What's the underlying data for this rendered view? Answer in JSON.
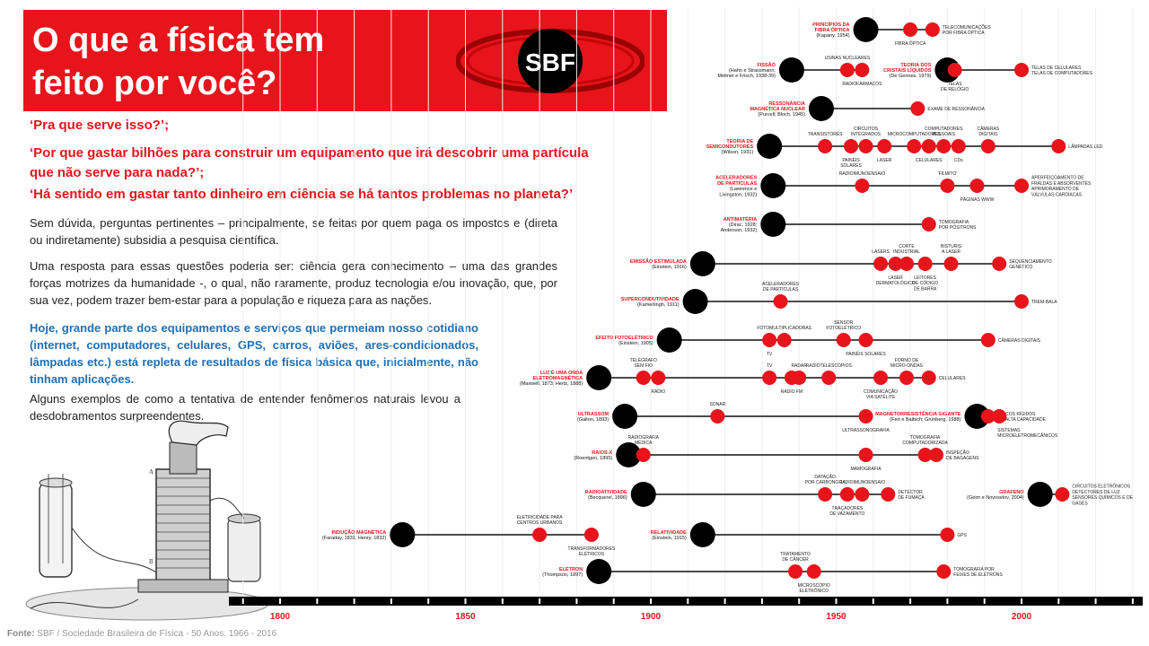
{
  "title": {
    "line1": "O que a física tem",
    "line2": "feito por você?",
    "logo_text": "SBF"
  },
  "questions": [
    "‘Pra que serve isso?’;",
    "‘Por que gastar bilhões para construir um equipamento que irá descobrir uma partícula",
    "que não serve para nada?’;",
    "‘Há sentido em gastar tanto dinheiro em ciência se há tantos problemas no planeta?’"
  ],
  "paragraphs": {
    "p1": "Sem dúvida,  perguntas  pertinentes – principalmente,  se feitas por quem paga os impostos  e (direta ou indiretamente)  subsidia  a pesquisa  científica.",
    "p2": "Uma resposta  para essas questões poderia ser: ciência gera conhecimento – uma das grandes  forças motrizes da humanidade  -, o qual,  não raramente,  produz tecnologia e/ou inovação, que, por sua vez, podem trazer bem-estar  para a população  e riqueza para as nações.",
    "p3": "Hoje,  grande parte dos equipamentos e serviços que permeiam nosso cotidiano (internet, computadores,  celulares,  GPS,  carros,  aviões,  ares-condicionados, lâmpadas etc.) está repleta de resultados de física  básica que, inicialmente,  não tinham aplicações.",
    "p4": "Alguns  exemplos  de como a tentativa  de entender fenômenos naturais  levou a desdobramentos  surpreendentes."
  },
  "footer": {
    "label": "Fonte:",
    "text": " SBF / Sociedade Brasileira de Física - 50 Anos. 1966 - 2016"
  },
  "colors": {
    "accent": "#e8141b",
    "blue": "#1f6fb4",
    "dot_black": "#000000"
  },
  "timeline": {
    "year_labels": [
      "1800",
      "1850",
      "1900",
      "1950",
      "2000"
    ],
    "year_values": [
      1800,
      1850,
      1900,
      1950,
      2000
    ],
    "events": [
      {
        "name": "PRINCÍPIOS DA FIBRA ÓPTICA",
        "lines": [
          "PRINCÍPIOS DA",
          "FIBRA ÓPTICA"
        ],
        "ref": "(Kapany, 1954)",
        "year": 1958,
        "row": 0,
        "apps": [
          {
            "year": 1970,
            "label": [
              "FIBRA ÓPTICA"
            ],
            "pos": "below"
          },
          {
            "year": 1976,
            "label": [
              "TELECOMUNICAÇÕES",
              "POR FIBRA ÓPTICA"
            ],
            "pos": "right"
          }
        ]
      },
      {
        "name": "FISSÃO",
        "lines": [
          "FISSÃO"
        ],
        "ref": "(Hahn e Strassmann; Meitner e Frisch, 1938-39)",
        "refLines": [
          "(Hahn e Strassmann;",
          "Meitner e Frisch, 1938-39)"
        ],
        "year": 1938,
        "row": 1,
        "apps": [
          {
            "year": 1953,
            "label": [
              "USINAS NUCLEARES"
            ],
            "pos": "above"
          },
          {
            "year": 1957,
            "label": [
              "RADIOFÁRMACOS"
            ],
            "pos": "below"
          }
        ]
      },
      {
        "name": "TEORIA DOS CRISTAIS LÍQUIDOS",
        "lines": [
          "TEORIA DOS",
          "CRISTAIS LÍQUIDOS"
        ],
        "ref": "(De Gennes, 1979)",
        "year": 1980,
        "row": 1,
        "apps": [
          {
            "year": 1982,
            "label": [
              "TELAS",
              "DE RELÓGIO"
            ],
            "pos": "below"
          },
          {
            "year": 2000,
            "label": [
              "TELAS DE CELULARES",
              "TELAS DE COMPUTADORES"
            ],
            "pos": "right"
          }
        ]
      },
      {
        "name": "RESSONÂNCIA MAGNÉTICA NUCLEAR",
        "lines": [
          "RESSONÂNCIA",
          "MAGNÉTICA NUCLEAR"
        ],
        "ref": "(Purcell; Bloch, 1945)",
        "year": 1946,
        "row": 2,
        "apps": [
          {
            "year": 1972,
            "label": [
              "EXAME DE RESSONÂNCIA"
            ],
            "pos": "right"
          }
        ]
      },
      {
        "name": "TEORIA DE SEMICONDUTORES",
        "lines": [
          "TEORIA DE",
          "SEMICONDUTORES"
        ],
        "ref": "(Wilson, 1931)",
        "year": 1932,
        "row": 3,
        "apps": [
          {
            "year": 1947,
            "label": [
              "TRANSISTORES"
            ],
            "pos": "above"
          },
          {
            "year": 1954,
            "label": [
              "PAINÉIS",
              "SOLARES"
            ],
            "pos": "below"
          },
          {
            "year": 1958,
            "label": [
              "CIRCUITOS",
              "INTEGRADOS"
            ],
            "pos": "above"
          },
          {
            "year": 1963,
            "label": [
              "LASER"
            ],
            "pos": "below"
          },
          {
            "year": 1971,
            "label": [
              "MICROCOMPUTADORES"
            ],
            "pos": "above"
          },
          {
            "year": 1975,
            "label": [
              "CELULARES"
            ],
            "pos": "below"
          },
          {
            "year": 1979,
            "label": [
              "COMPUTADORES",
              "PESSOAIS"
            ],
            "pos": "above"
          },
          {
            "year": 1983,
            "label": [
              "CDs"
            ],
            "pos": "below"
          },
          {
            "year": 1991,
            "label": [
              "CÂMERAS",
              "DIGITAIS"
            ],
            "pos": "above"
          },
          {
            "year": 2010,
            "label": [
              "LÂMPADAS LED"
            ],
            "pos": "right"
          }
        ]
      },
      {
        "name": "ACELERADORES DE PARTÍCULAS",
        "lines": [
          "ACELERADORES",
          "DE PARTÍCULAS"
        ],
        "ref": "(Lawrence e Livingston, 1932)",
        "refLines": [
          "(Lawrence e",
          "Livingston, 1932)"
        ],
        "year": 1933,
        "row": 4,
        "apps": [
          {
            "year": 1957,
            "label": [
              "RADIOIMUNOENSAIO"
            ],
            "pos": "above"
          },
          {
            "year": 1980,
            "label": [
              "'FILMITO'"
            ],
            "pos": "above"
          },
          {
            "year": 1988,
            "label": [
              "PÁGINAS WWW"
            ],
            "pos": "below"
          },
          {
            "year": 2000,
            "label": [
              "APERFEIÇOAMENTO DE",
              "FRALDAS E ABSORVENTES",
              "APRIMORAMENTO DE",
              "VÁLVULAS CARDÍACAS"
            ],
            "pos": "right"
          }
        ]
      },
      {
        "name": "ANTIMATÉRIA",
        "lines": [
          "ANTIMATÉRIA"
        ],
        "ref": "(Dirac, 1928; Anderson, 1932)",
        "refLines": [
          "(Dirac, 1928;",
          "Anderson, 1932)"
        ],
        "year": 1933,
        "row": 5,
        "apps": [
          {
            "year": 1975,
            "label": [
              "TOMOGRAFIA",
              "POR PÓSITRONS"
            ],
            "pos": "right"
          }
        ]
      },
      {
        "name": "EMISSÃO ESTIMULADA",
        "lines": [
          "EMISSÃO ESTIMULADA"
        ],
        "ref": "(Einstein, 1916)",
        "year": 1914,
        "row": 6,
        "apps": [
          {
            "year": 1962,
            "label": [
              "LASERS"
            ],
            "pos": "above"
          },
          {
            "year": 1966,
            "label": [
              "LASER",
              "DERMATOLÓGICO"
            ],
            "pos": "below"
          },
          {
            "year": 1969,
            "label": [
              "CORTE",
              "INDUSTRIAL"
            ],
            "pos": "above"
          },
          {
            "year": 1974,
            "label": [
              "LEITORES",
              "DE CÓDIGO",
              "DE BARRA"
            ],
            "pos": "below"
          },
          {
            "year": 1981,
            "label": [
              "BISTURIS",
              "A LASER"
            ],
            "pos": "above"
          },
          {
            "year": 1994,
            "label": [
              "SEQUENCIAMENTO",
              "GENÉTICO"
            ],
            "pos": "right"
          }
        ]
      },
      {
        "name": "SUPERCONDUTIVIDADE",
        "lines": [
          "SUPERCONDUTIVIDADE"
        ],
        "ref": "(Kamerlingh, 1911)",
        "year": 1912,
        "row": 7,
        "apps": [
          {
            "year": 1935,
            "label": [
              "ACELERADORES",
              "DE PARTÍCULAS"
            ],
            "pos": "above"
          },
          {
            "year": 2000,
            "label": [
              "TREM-BALA"
            ],
            "pos": "right"
          }
        ]
      },
      {
        "name": "EFEITO FOTOELÉTRICO",
        "lines": [
          "EFEITO FOTOELÉTRICO"
        ],
        "ref": "(Einstein, 1905)",
        "year": 1905,
        "row": 8,
        "apps": [
          {
            "year": 1932,
            "label": [
              "TV"
            ],
            "pos": "below"
          },
          {
            "year": 1936,
            "label": [
              "FOTOMULTIPLICADORAS"
            ],
            "pos": "above"
          },
          {
            "year": 1952,
            "label": [
              "SENSOR",
              "FOTOELÉTRICO"
            ],
            "pos": "above"
          },
          {
            "year": 1958,
            "label": [
              "PAINÉIS SOLARES"
            ],
            "pos": "below"
          },
          {
            "year": 1991,
            "label": [
              "CÂMERAS DIGITAIS"
            ],
            "pos": "right"
          }
        ]
      },
      {
        "name": "LUZ É UMA ONDA ELETROMAGNÉTICA",
        "lines": [
          "LUZ É UMA ONDA",
          "ELETROMAGNÉTICA"
        ],
        "ref": "(Maxwell, 1873; Hertz, 1888)",
        "year": 1886,
        "row": 9,
        "apps": [
          {
            "year": 1898,
            "label": [
              "TELÉGRAFO",
              "SEM FIO"
            ],
            "pos": "above"
          },
          {
            "year": 1902,
            "label": [
              "RÁDIO"
            ],
            "pos": "below"
          },
          {
            "year": 1932,
            "label": [
              "TV"
            ],
            "pos": "above"
          },
          {
            "year": 1938,
            "label": [
              "RÁDIO FM"
            ],
            "pos": "below"
          },
          {
            "year": 1940,
            "label": [
              "RADAR"
            ],
            "pos": "above"
          },
          {
            "year": 1948,
            "label": [
              "RADIOTELESCÓPIOS"
            ],
            "pos": "above"
          },
          {
            "year": 1962,
            "label": [
              "COMUNICAÇÃO",
              "VIA SATÉLITE"
            ],
            "pos": "below"
          },
          {
            "year": 1969,
            "label": [
              "FORNO DE",
              "MICRO-ONDAS"
            ],
            "pos": "above"
          },
          {
            "year": 1975,
            "label": [
              "CELULARES"
            ],
            "pos": "right"
          }
        ]
      },
      {
        "name": "ULTRASSOM",
        "lines": [
          "ULTRASSOM"
        ],
        "ref": "(Galton, 1893)",
        "year": 1893,
        "row": 10,
        "apps": [
          {
            "year": 1918,
            "label": [
              "SONAR"
            ],
            "pos": "above"
          },
          {
            "year": 1958,
            "label": [
              "ULTRASSONOGRAFIA"
            ],
            "pos": "below"
          }
        ]
      },
      {
        "name": "MAGNETORRESISTÊNCIA GIGANTE",
        "lines": [
          "MAGNETORRESISTÊNCIA GIGANTE"
        ],
        "ref": "(Fert e Baibich; Grünberg, 1988)",
        "year": 1988,
        "row": 10,
        "apps": [
          {
            "year": 1991,
            "label": [
              "DISCOS RÍGIDOS",
              "DE ALTA CAPACIDADE"
            ],
            "pos": "right"
          },
          {
            "year": 1994,
            "label": [
              "SISTEMAS",
              "MICROELETROMECÂNICOS"
            ],
            "pos": "belowright"
          }
        ]
      },
      {
        "name": "RAIOS-X",
        "lines": [
          "RAIOS-X"
        ],
        "ref": "(Roentgen, 1895)",
        "year": 1894,
        "row": 11,
        "apps": [
          {
            "year": 1898,
            "label": [
              "RADIOGRAFIA",
              "MÉDICA"
            ],
            "pos": "above"
          },
          {
            "year": 1958,
            "label": [
              "MAMOGRAFIA"
            ],
            "pos": "below"
          },
          {
            "year": 1974,
            "label": [
              "TOMOGRAFIA",
              "COMPUTADORIZADA"
            ],
            "pos": "above"
          },
          {
            "year": 1977,
            "label": [
              "INSPEÇÃO",
              "DE BAGAGENS"
            ],
            "pos": "right"
          }
        ]
      },
      {
        "name": "RADIOATIVIDADE",
        "lines": [
          "RADIOATIVIDADE"
        ],
        "ref": "(Becquerel, 1896)",
        "year": 1898,
        "row": 12,
        "apps": [
          {
            "year": 1947,
            "label": [
              "DATAÇÃO",
              "POR CARBONO-14"
            ],
            "pos": "above"
          },
          {
            "year": 1953,
            "label": [
              "TRAÇADORES",
              "DE VAZAMENTO"
            ],
            "pos": "below"
          },
          {
            "year": 1957,
            "label": [
              "RADIOIMUNOENSAIO"
            ],
            "pos": "above"
          },
          {
            "year": 1964,
            "label": [
              "DETECTOR",
              "DE FUMAÇA"
            ],
            "pos": "right"
          }
        ]
      },
      {
        "name": "GRAFENO",
        "lines": [
          "GRAFENO"
        ],
        "ref": "(Geim e Novoselov, 2004)",
        "year": 2005,
        "row": 12,
        "apps": [
          {
            "year": 2011,
            "label": [
              "CIRCUITOS ELETRÔNICOS",
              "DETECTORES DE LUZ",
              "SENSORES QUÍMICOS E DE",
              "GASES"
            ],
            "pos": "right"
          }
        ]
      },
      {
        "name": "INDUÇÃO MAGNÉTICA",
        "lines": [
          "INDUÇÃO MAGNÉTICA"
        ],
        "ref": "(Faraday, 1831; Henry, 1832)",
        "year": 1833,
        "row": 13,
        "apps": [
          {
            "year": 1870,
            "label": [
              "ELETRICIDADE PARA",
              "CENTROS URBANOS"
            ],
            "pos": "above"
          },
          {
            "year": 1884,
            "label": [
              "TRANSFORMADORES",
              "ELÉTRICOS"
            ],
            "pos": "below"
          }
        ]
      },
      {
        "name": "RELATIVIDADE",
        "lines": [
          "RELATIVIDADE"
        ],
        "ref": "(Einstein, 1915)",
        "year": 1914,
        "row": 13,
        "apps": [
          {
            "year": 1980,
            "label": [
              "GPS"
            ],
            "pos": "right"
          }
        ]
      },
      {
        "name": "ELÉTRON",
        "lines": [
          "ELÉTRON"
        ],
        "ref": "(Thompson, 1897)",
        "year": 1886,
        "row": 14,
        "apps": [
          {
            "year": 1939,
            "label": [
              "TRATAMENTO",
              "DE CÂNCER"
            ],
            "pos": "above"
          },
          {
            "year": 1944,
            "label": [
              "MICROSCÓPIO",
              "ELETRÔNICO"
            ],
            "pos": "below"
          },
          {
            "year": 1979,
            "label": [
              "TOMOGRAFIA POR",
              "FEIXES DE ELÉTRONS"
            ],
            "pos": "right"
          }
        ]
      }
    ]
  }
}
